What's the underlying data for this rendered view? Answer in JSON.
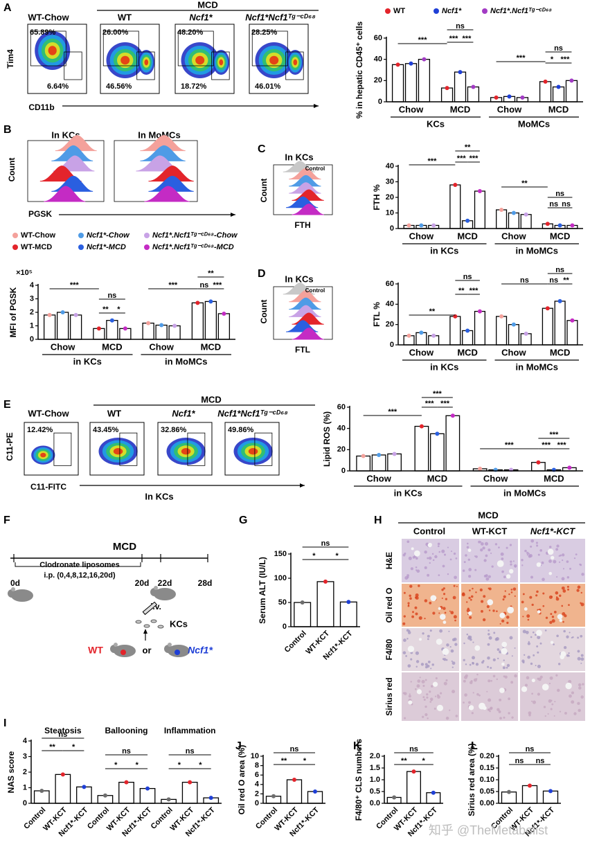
{
  "figure": {
    "panel_letters": [
      "A",
      "B",
      "C",
      "D",
      "E",
      "F",
      "G",
      "H",
      "I",
      "J",
      "K",
      "L"
    ],
    "A": {
      "header_group": "MCD",
      "columns": [
        "WT-Chow",
        "WT",
        "Ncf1*",
        "Ncf1*Ncf1ᵀᵍ⁻ᶜᴰ⁶⁸"
      ],
      "gates": [
        [
          "65.89%",
          "6.64%"
        ],
        [
          "26.00%",
          "46.56%"
        ],
        [
          "48.20%",
          "18.72%"
        ],
        [
          "28.25%",
          "46.01%"
        ]
      ],
      "y_axis": "Tim4",
      "x_axis": "CD11b"
    },
    "B": {
      "titles": [
        "In KCs",
        "In MoMCs"
      ],
      "y_axis": "Count",
      "x_axis": "PGSK"
    },
    "C": {
      "title": "In KCs",
      "gate": "Control",
      "y_axis": "Count",
      "x_axis": "FTH"
    },
    "D": {
      "title": "In KCs",
      "gate": "Control",
      "y_axis": "Count",
      "x_axis": "FTL"
    },
    "E": {
      "header_group": "MCD",
      "columns": [
        "WT-Chow",
        "WT",
        "Ncf1*",
        "Ncf1*Ncf1ᵀᵍ⁻ᶜᴰ⁶⁸"
      ],
      "gates": [
        "12.42%",
        "43.45%",
        "32.86%",
        "49.86%"
      ],
      "y_axis": "C11-PE",
      "x_axis": "C11-FITC",
      "caption": "In KCs"
    },
    "F": {
      "title": "MCD",
      "treatment": "Clodronate liposomes",
      "schedule": "i.p. (0,4,8,12,16,20d)",
      "timepoints": [
        "0d",
        "20d",
        "22d",
        "28d"
      ],
      "route": "i.v.",
      "cells": "KCs",
      "donors": [
        "WT",
        "or",
        "Ncf1*"
      ]
    },
    "H": {
      "header_group": "MCD",
      "columns": [
        "Control",
        "WT-KCT",
        "Ncf1*-KCT"
      ],
      "rows": [
        "H&E",
        "Oil red O",
        "F4/80",
        "Sirius red"
      ]
    },
    "watermark": "知乎 @TheMetabolist"
  },
  "chart_data": [
    {
      "type": "bar",
      "y_label": "% in hepatic CD45⁺ cells",
      "categories": [
        "Chow",
        "MCD",
        "Chow",
        "MCD"
      ],
      "groups": [
        "KCs",
        "MoMCs"
      ],
      "legend": "top",
      "series": [
        {
          "name": "WT",
          "color": "#e3242b",
          "values": [
            35,
            13,
            4,
            19
          ]
        },
        {
          "name": "Ncf1*",
          "color": "#1f3fd6",
          "values": [
            36,
            28,
            5,
            14
          ]
        },
        {
          "name": "Ncf1*.Ncf1ᵀᵍ⁻ᶜᴰ⁶⁸",
          "color": "#a23bc4",
          "values": [
            40,
            14,
            4,
            20
          ]
        }
      ],
      "ylim": [
        0,
        60
      ],
      "yticks": [
        0,
        20,
        40,
        60
      ],
      "annotations": [
        "***",
        "ns",
        "***",
        "***",
        "***",
        "ns",
        "*",
        "***"
      ]
    },
    {
      "type": "bar",
      "y_label": "MFI of PGSK",
      "y_multiplier": "×10⁵",
      "categories": [
        "Chow",
        "MCD",
        "Chow",
        "MCD"
      ],
      "groups": [
        "in KCs",
        "in MoMCs"
      ],
      "legend": "top",
      "series": [
        {
          "name": "WT-Chow",
          "color": "#f4a19b",
          "values": [
            1.8,
            null,
            1.2,
            null
          ]
        },
        {
          "name": "Ncf1*-Chow",
          "color": "#4f9be6",
          "values": [
            2.0,
            null,
            1.05,
            null
          ]
        },
        {
          "name": "Ncf1*.Ncf1ᵀᵍ⁻ᶜᴰ⁶⁸-Chow",
          "color": "#c8a2e6",
          "values": [
            1.8,
            null,
            1.0,
            null
          ]
        },
        {
          "name": "WT-MCD",
          "color": "#e3242b",
          "values": [
            null,
            0.8,
            null,
            2.7
          ]
        },
        {
          "name": "Ncf1*-MCD",
          "color": "#2a5fe0",
          "values": [
            null,
            1.4,
            null,
            2.8
          ]
        },
        {
          "name": "Ncf1*.Ncf1ᵀᵍ⁻ᶜᴰ⁶⁸-MCD",
          "color": "#c42bc4",
          "values": [
            null,
            0.8,
            null,
            1.9
          ]
        }
      ],
      "ylim": [
        0,
        4
      ],
      "yticks": [
        0,
        1,
        2,
        3,
        4
      ],
      "annotations": [
        "***",
        "ns",
        "**",
        "*",
        "***",
        "**",
        "ns",
        "***"
      ]
    },
    {
      "type": "bar",
      "y_label": "FTH %",
      "categories": [
        "Chow",
        "MCD",
        "Chow",
        "MCD"
      ],
      "groups": [
        "in KCs",
        "in MoMCs"
      ],
      "series": [
        {
          "color": "#f4a19b",
          "values": [
            2,
            null,
            12,
            null
          ]
        },
        {
          "color": "#4f9be6",
          "values": [
            2,
            null,
            10,
            null
          ]
        },
        {
          "color": "#c8a2e6",
          "values": [
            2,
            null,
            9,
            null
          ]
        },
        {
          "color": "#e3242b",
          "values": [
            null,
            28,
            null,
            3
          ]
        },
        {
          "color": "#2a5fe0",
          "values": [
            null,
            5,
            null,
            2
          ]
        },
        {
          "color": "#c42bc4",
          "values": [
            null,
            24,
            null,
            2
          ]
        }
      ],
      "ylim": [
        0,
        40
      ],
      "yticks": [
        0,
        10,
        20,
        30,
        40
      ],
      "annotations": [
        "***",
        "**",
        "***",
        "***",
        "**",
        "ns",
        "ns",
        "ns"
      ]
    },
    {
      "type": "bar",
      "y_label": "FTL %",
      "categories": [
        "Chow",
        "MCD",
        "Chow",
        "MCD"
      ],
      "groups": [
        "in KCs",
        "in MoMCs"
      ],
      "series": [
        {
          "color": "#f4a19b",
          "values": [
            9,
            null,
            28,
            null
          ]
        },
        {
          "color": "#4f9be6",
          "values": [
            12,
            null,
            20,
            null
          ]
        },
        {
          "color": "#c8a2e6",
          "values": [
            9,
            null,
            11,
            null
          ]
        },
        {
          "color": "#e3242b",
          "values": [
            null,
            28,
            null,
            36
          ]
        },
        {
          "color": "#2a5fe0",
          "values": [
            null,
            14,
            null,
            43
          ]
        },
        {
          "color": "#c42bc4",
          "values": [
            null,
            33,
            null,
            24
          ]
        }
      ],
      "ylim": [
        0,
        60
      ],
      "yticks": [
        0,
        20,
        40,
        60
      ],
      "annotations": [
        "**",
        "ns",
        "**",
        "***",
        "ns",
        "ns",
        "ns",
        "**"
      ]
    },
    {
      "type": "bar",
      "y_label": "Lipid ROS (%)",
      "categories": [
        "Chow",
        "MCD",
        "Chow",
        "MCD"
      ],
      "groups": [
        "in KCs",
        "in MoMCs"
      ],
      "series": [
        {
          "color": "#f4a19b",
          "values": [
            14,
            null,
            2,
            null
          ]
        },
        {
          "color": "#4f9be6",
          "values": [
            15,
            null,
            1,
            null
          ]
        },
        {
          "color": "#c8a2e6",
          "values": [
            16,
            null,
            1,
            null
          ]
        },
        {
          "color": "#e3242b",
          "values": [
            null,
            42,
            null,
            8
          ]
        },
        {
          "color": "#2a5fe0",
          "values": [
            null,
            35,
            null,
            1
          ]
        },
        {
          "color": "#c42bc4",
          "values": [
            null,
            52,
            null,
            3
          ]
        }
      ],
      "ylim": [
        0,
        60
      ],
      "yticks": [
        0,
        20,
        40,
        60
      ],
      "annotations": [
        "***",
        "***",
        "***",
        "***",
        "***",
        "***",
        "***",
        "***"
      ]
    },
    {
      "type": "bar",
      "y_label": "Serum ALT (IU/L)",
      "categories": [
        "Control",
        "WT-KCT",
        "Ncf1*-KCT"
      ],
      "xtick_rotation": 45,
      "series": [
        {
          "colors": [
            "#6d6d6d",
            "#e3242b",
            "#1f3fd6"
          ],
          "values": [
            50,
            93,
            51
          ]
        }
      ],
      "ylim": [
        0,
        150
      ],
      "yticks": [
        0,
        50,
        100,
        150
      ],
      "annotations": [
        "ns",
        "*",
        "*"
      ]
    },
    {
      "type": "bar",
      "y_label": "NAS score",
      "categories": [
        "Control",
        "WT-KCT",
        "Ncf1*-KCT",
        "Control",
        "WT-KCT",
        "Ncf1*-KCT",
        "Control",
        "WT-KCT",
        "Ncf1*-KCT"
      ],
      "groups": [
        "Steatosis",
        "Ballooning",
        "Inflammation"
      ],
      "group_position": "top",
      "xtick_rotation": 45,
      "series": [
        {
          "colors": [
            "#6d6d6d",
            "#e3242b",
            "#1f3fd6",
            "#6d6d6d",
            "#e3242b",
            "#1f3fd6",
            "#6d6d6d",
            "#e3242b",
            "#1f3fd6"
          ],
          "values": [
            0.8,
            1.85,
            1.05,
            0.5,
            1.35,
            0.95,
            0.25,
            1.35,
            0.35
          ]
        }
      ],
      "ylim": [
        0,
        4
      ],
      "yticks": [
        0,
        1,
        2,
        3,
        4
      ],
      "annotations": [
        "ns",
        "**",
        "*",
        "ns",
        "*",
        "*",
        "ns",
        "*",
        "*"
      ]
    },
    {
      "type": "bar",
      "y_label": "Oil red O area (%)",
      "categories": [
        "Control",
        "WT-KCT",
        "Ncf1*-KCT"
      ],
      "xtick_rotation": 45,
      "series": [
        {
          "colors": [
            "#6d6d6d",
            "#e3242b",
            "#1f3fd6"
          ],
          "values": [
            1.5,
            5.0,
            2.5
          ]
        }
      ],
      "ylim": [
        0,
        10
      ],
      "yticks": [
        0,
        2,
        4,
        6,
        8,
        10
      ],
      "annotations": [
        "ns",
        "**",
        "*"
      ]
    },
    {
      "type": "bar",
      "y_label": "F4/80⁺ CLS numbers",
      "categories": [
        "Control",
        "WT-KCT",
        "Ncf1*-KCT"
      ],
      "xtick_rotation": 45,
      "series": [
        {
          "colors": [
            "#6d6d6d",
            "#e3242b",
            "#1f3fd6"
          ],
          "values": [
            0.25,
            1.35,
            0.45
          ]
        }
      ],
      "ylim": [
        0,
        2
      ],
      "yticks": [
        {
          "value": 0,
          "label": "0.0"
        },
        0.5,
        {
          "value": 1,
          "label": "1.0"
        },
        1.5,
        {
          "value": 2,
          "label": "2.0"
        }
      ],
      "annotations": [
        "ns",
        "**",
        "*"
      ]
    },
    {
      "type": "bar",
      "y_label": "Sirius red area (%)",
      "categories": [
        "Control",
        "WT-KCT",
        "Ncf1*-KCT"
      ],
      "xtick_rotation": 45,
      "series": [
        {
          "colors": [
            "#6d6d6d",
            "#e3242b",
            "#1f3fd6"
          ],
          "values": [
            0.048,
            0.075,
            0.052
          ]
        }
      ],
      "ylim": [
        0,
        0.2
      ],
      "yticks": [
        {
          "value": 0,
          "label": "0.00"
        },
        0.05,
        {
          "value": 0.1,
          "label": "0.10"
        },
        0.15,
        {
          "value": 0.2,
          "label": "0.20"
        }
      ],
      "annotations": [
        "ns",
        "ns",
        "ns"
      ]
    }
  ]
}
